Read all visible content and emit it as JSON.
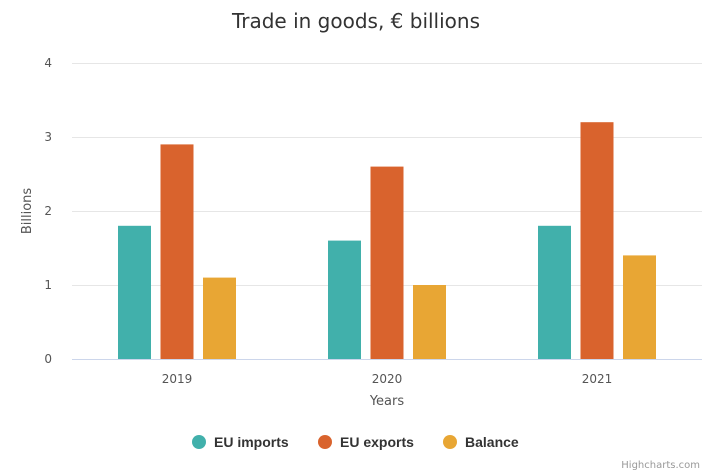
{
  "chart_data": {
    "type": "bar",
    "title": "Trade in goods, € billions",
    "xlabel": "Years",
    "ylabel": "Billions",
    "categories": [
      "2019",
      "2020",
      "2021"
    ],
    "ylim": [
      0,
      4
    ],
    "yticks": [
      "0",
      "1",
      "2",
      "3",
      "4"
    ],
    "grid": true,
    "legend_position": "bottom",
    "series": [
      {
        "name": "EU imports",
        "color": "#41b0ab",
        "values": [
          1.8,
          1.6,
          1.8
        ]
      },
      {
        "name": "EU exports",
        "color": "#d9632d",
        "values": [
          2.9,
          2.6,
          3.2
        ]
      },
      {
        "name": "Balance",
        "color": "#e8a634",
        "values": [
          1.1,
          1.0,
          1.4
        ]
      }
    ]
  },
  "credits": "Highcharts.com"
}
